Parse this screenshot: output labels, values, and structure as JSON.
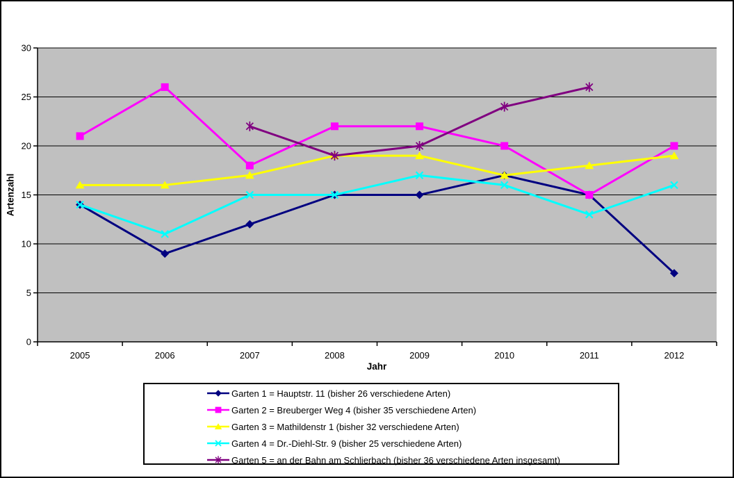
{
  "window": {
    "background": "#FFFFFF",
    "border_color": "#000000"
  },
  "chart_data": {
    "type": "line",
    "title": "",
    "xlabel": "Jahr",
    "ylabel": "Artenzahl",
    "x": [
      "2005",
      "2006",
      "2007",
      "2008",
      "2009",
      "2010",
      "2011",
      "2012"
    ],
    "ylim": [
      0,
      30
    ],
    "ytick_step": 5,
    "grid": true,
    "plot_background": "#C0C0C0",
    "gridline_color": "#000000",
    "axis_color": "#000000",
    "legend_position": "bottom",
    "series": [
      {
        "name": "Garten 1 = Hauptstr. 11 (bisher 26 verschiedene Arten)",
        "color": "#000080",
        "marker": "diamond",
        "values": [
          14,
          9,
          12,
          15,
          15,
          17,
          15,
          7
        ]
      },
      {
        "name": "Garten 2 = Breuberger Weg 4 (bisher 35 verschiedene Arten)",
        "color": "#FF00FF",
        "marker": "square",
        "values": [
          21,
          26,
          18,
          22,
          22,
          20,
          15,
          20
        ]
      },
      {
        "name": "Garten 3 = Mathildenstr 1 (bisher 32 verschiedene Arten)",
        "color": "#FFFF00",
        "marker": "triangle",
        "values": [
          16,
          16,
          17,
          19,
          19,
          17,
          18,
          19
        ]
      },
      {
        "name": "Garten 4 = Dr.-Diehl-Str. 9 (bisher 25 verschiedene Arten)",
        "color": "#00FFFF",
        "marker": "x",
        "values": [
          14,
          11,
          15,
          15,
          17,
          16,
          13,
          16
        ]
      },
      {
        "name": "Garten 5 = an der Bahn am Schlierbach (bisher 36 verschiedene Arten insgesamt)",
        "color": "#800080",
        "marker": "star",
        "values": [
          null,
          null,
          22,
          19,
          20,
          24,
          26,
          null
        ]
      }
    ]
  }
}
